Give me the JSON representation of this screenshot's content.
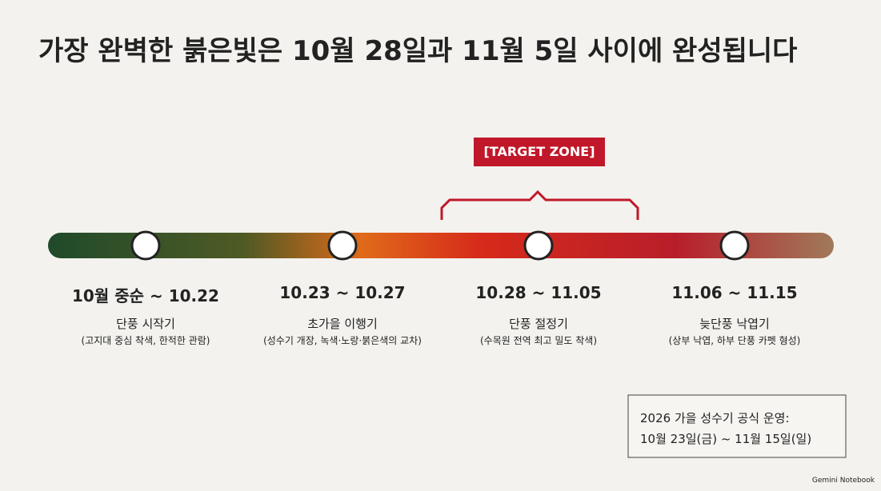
{
  "title": "가장 완벽한 붉은빛은 10월 28일과 11월 5일 사이에 완성됩니다",
  "target_zone": "[TARGET ZONE]",
  "stages": [
    {
      "date": "10월 중순 ~ 10.22",
      "name": "단풍 시작기",
      "desc": "(고지대 중심 착색, 한적한 관람)"
    },
    {
      "date": "10.23 ~ 10.27",
      "name": "초가을 이행기",
      "desc": "(성수기 개장, 녹색·노랑·붉은색의 교차)"
    },
    {
      "date": "10.28 ~ 11.05",
      "name": "단풍 절정기",
      "desc": "(수목원 전역 최고 밀도 착색)"
    },
    {
      "date": "11.06 ~ 11.15",
      "name": "늦단풍 낙엽기",
      "desc": "(상부 낙엽, 하부 단풍 카펫 형성)"
    }
  ],
  "notice": {
    "line1": "2026 가을 성수기 공식 운영:",
    "line2": "10월 23일(금) ~ 11월 15일(일)"
  },
  "brand": "Gemini Notebook"
}
